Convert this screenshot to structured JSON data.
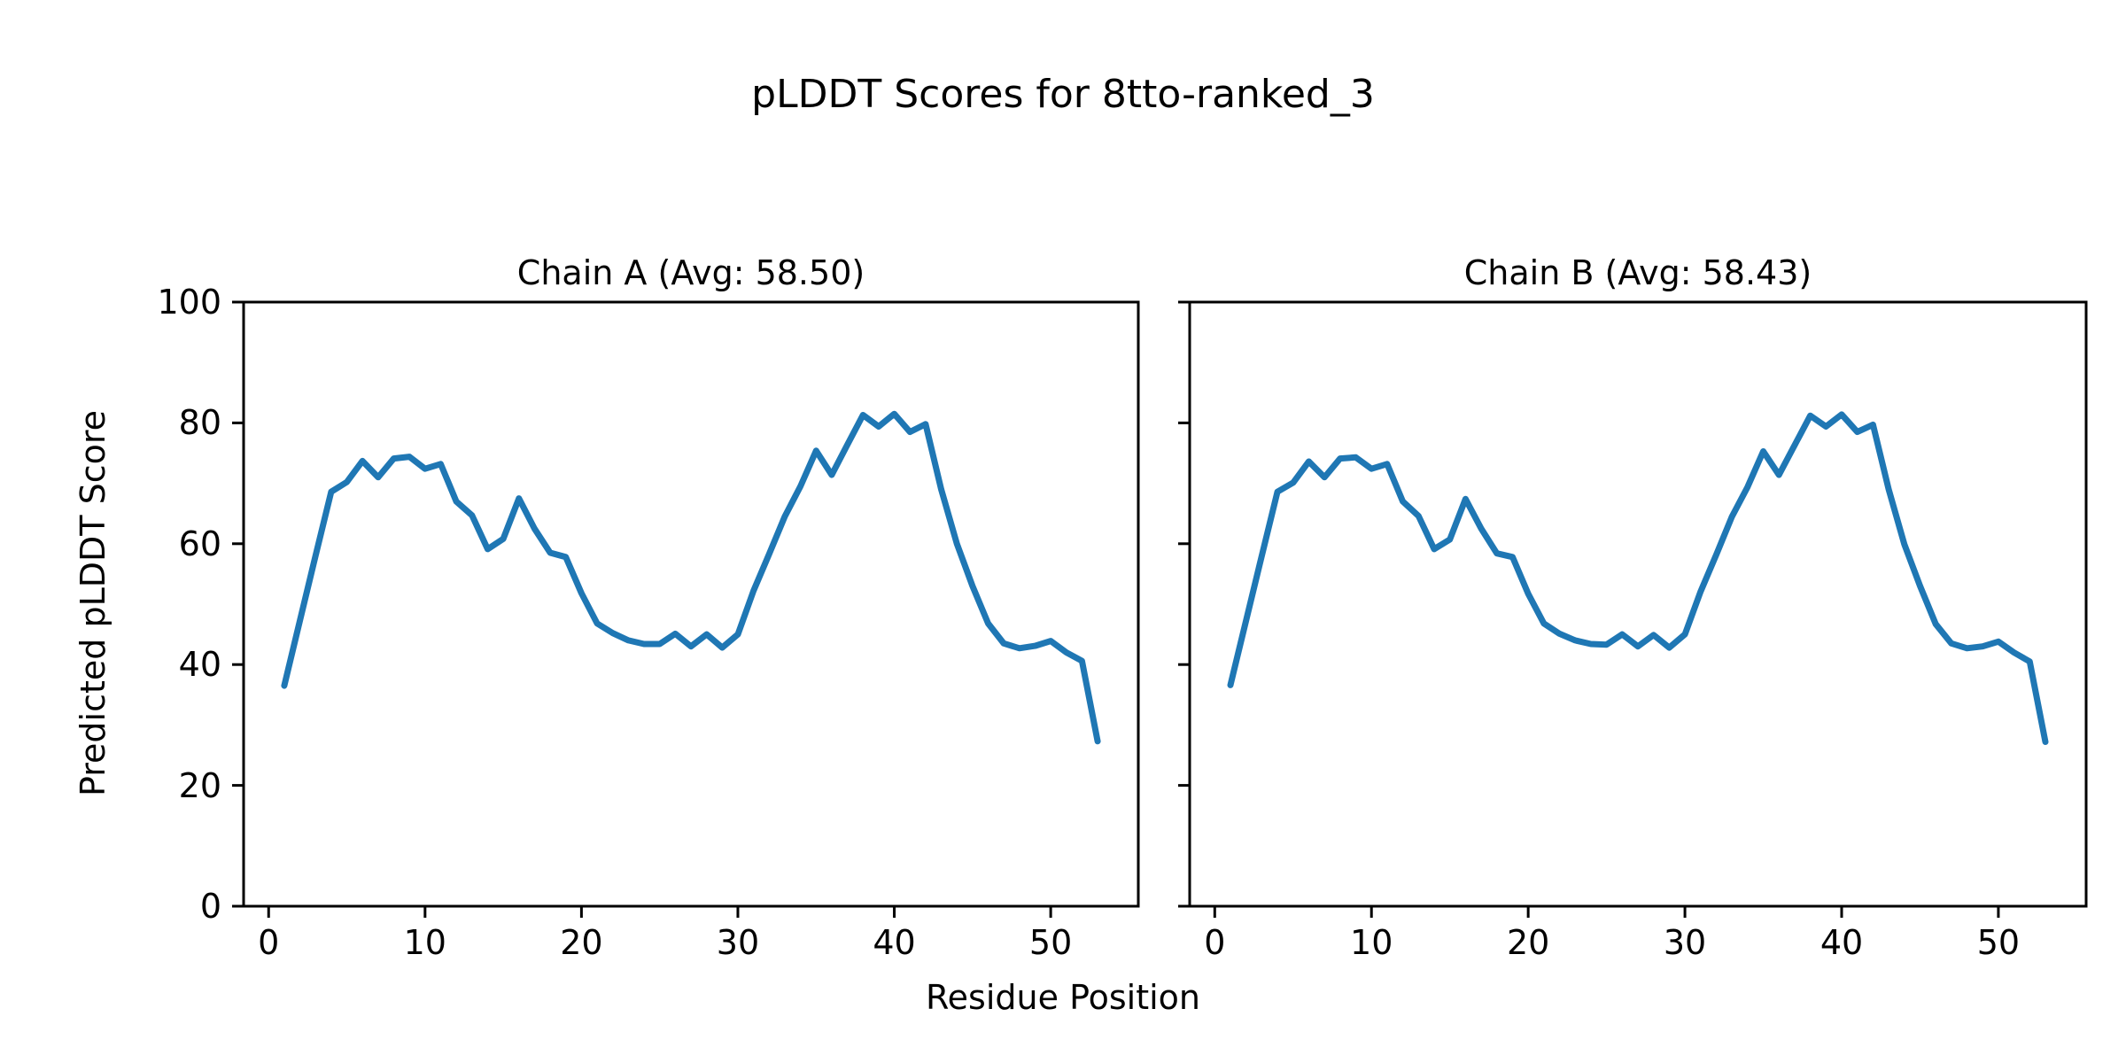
{
  "figure": {
    "suptitle": "pLDDT Scores for 8tto-ranked_3",
    "xlabel": "Residue Position",
    "ylabel": "Predicted pLDDT Score",
    "background_color": "#ffffff",
    "text_color": "#000000",
    "spine_color": "#000000",
    "line_color": "#1f77b4"
  },
  "chart_data": [
    {
      "type": "line",
      "title": "Chain A (Avg: 58.50)",
      "avg_label": "58.50",
      "x_start": 1,
      "xlim": [
        -1.6,
        55.6
      ],
      "ylim": [
        0,
        100
      ],
      "xticks": [
        0,
        10,
        20,
        30,
        40,
        50
      ],
      "yticks": [
        0,
        20,
        40,
        60,
        80,
        100
      ],
      "show_ytick_labels": true,
      "grid": false,
      "legend": false,
      "series": [
        {
          "name": "Chain A",
          "color": "#1f77b4",
          "y": [
            36.5,
            47.3,
            58.0,
            68.6,
            70.2,
            73.7,
            71.0,
            74.1,
            74.4,
            72.4,
            73.2,
            67.0,
            64.7,
            59.1,
            60.8,
            67.5,
            62.5,
            58.5,
            57.8,
            51.8,
            46.8,
            45.2,
            44.0,
            43.4,
            43.4,
            45.1,
            43.0,
            45.0,
            42.8,
            45.0,
            52.2,
            58.3,
            64.5,
            69.5,
            75.4,
            71.4,
            76.4,
            81.3,
            79.4,
            81.5,
            78.5,
            79.8,
            69.0,
            60.0,
            53.0,
            46.8,
            43.5,
            42.7,
            43.1,
            43.9,
            42.0,
            40.6,
            27.3
          ]
        }
      ]
    },
    {
      "type": "line",
      "title": "Chain B (Avg: 58.43)",
      "avg_label": "58.43",
      "x_start": 1,
      "xlim": [
        -1.6,
        55.6
      ],
      "ylim": [
        0,
        100
      ],
      "xticks": [
        0,
        10,
        20,
        30,
        40,
        50
      ],
      "yticks": [
        0,
        20,
        40,
        60,
        80,
        100
      ],
      "show_ytick_labels": false,
      "grid": false,
      "legend": false,
      "series": [
        {
          "name": "Chain B",
          "color": "#1f77b4",
          "y": [
            36.6,
            47.3,
            58.0,
            68.6,
            70.1,
            73.6,
            71.0,
            74.1,
            74.3,
            72.4,
            73.2,
            67.0,
            64.6,
            59.1,
            60.7,
            67.4,
            62.5,
            58.4,
            57.8,
            51.7,
            46.8,
            45.1,
            44.0,
            43.4,
            43.3,
            45.0,
            43.0,
            44.9,
            42.8,
            45.0,
            52.1,
            58.2,
            64.5,
            69.4,
            75.3,
            71.4,
            76.3,
            81.2,
            79.4,
            81.4,
            78.5,
            79.7,
            69.0,
            59.9,
            53.0,
            46.7,
            43.5,
            42.7,
            43.0,
            43.8,
            42.0,
            40.5,
            27.2
          ]
        }
      ]
    }
  ]
}
